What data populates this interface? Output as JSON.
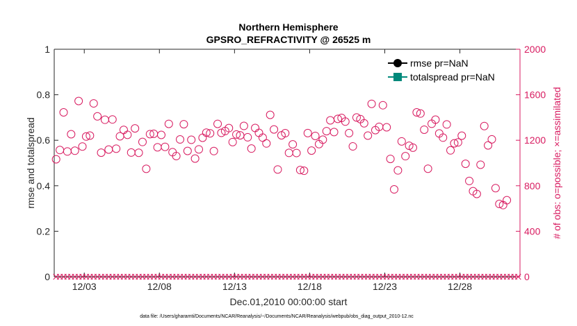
{
  "colors": {
    "axis_left": "#262626",
    "axis_right": "#d81b60",
    "obs_marker": "#d81b60",
    "rmse": "#000000",
    "totalspread": "#00897b"
  },
  "chart_data": {
    "type": "scatter",
    "title_line1": "Northern Hemisphere",
    "title_line2": "GPSRO_REFRACTIVITY @ 26525 m",
    "xlabel": "Dec.01,2010 00:00:00 start",
    "ylabel_left": "rmse and totalspread",
    "ylabel_right": "# of obs: o=possible; ×=assimilated",
    "footnote": "data file: /Users/gharamti/Documents/NCAR/Reanalysis/~/Documents/NCAR/Reanalysis/webpub/obs_diag_output_2010-12.nc",
    "x_unit": "days since Dec.01,2010 00:00:00",
    "xlim": [
      0,
      31
    ],
    "x_ticks": [
      2,
      7,
      12,
      17,
      22,
      27
    ],
    "x_tick_labels": [
      "12/03",
      "12/08",
      "12/13",
      "12/18",
      "12/23",
      "12/28"
    ],
    "ylim_left": [
      0,
      1
    ],
    "y_ticks_left": [
      0,
      0.2,
      0.4,
      0.6,
      0.8,
      1
    ],
    "y_tick_labels_left": [
      "0",
      "0.2",
      "0.4",
      "0.6",
      "0.8",
      "1"
    ],
    "ylim_right": [
      0,
      2000
    ],
    "y_ticks_right": [
      0,
      400,
      800,
      1200,
      1600,
      2000
    ],
    "y_tick_labels_right": [
      "0",
      "400",
      "800",
      "1200",
      "1600",
      "2000"
    ],
    "legend": [
      {
        "name": "rmse pr=NaN",
        "color": "#000000",
        "marker": "circle"
      },
      {
        "name": "totalspread pr=NaN",
        "color": "#00897b",
        "marker": "square"
      }
    ],
    "legend_location": "top-right",
    "series": [
      {
        "name": "obs possible",
        "axis": "right",
        "marker": "open-circle",
        "x_start": 0.125,
        "x_step": 0.25,
        "values": [
          1033,
          1114,
          1445,
          1101,
          1253,
          1108,
          1545,
          1145,
          1233,
          1241,
          1524,
          1410,
          1091,
          1380,
          1118,
          1383,
          1126,
          1235,
          1291,
          1248,
          1092,
          1304,
          1090,
          1185,
          949,
          1254,
          1257,
          1138,
          1247,
          1142,
          1344,
          1095,
          1061,
          1207,
          1341,
          1106,
          1204,
          1039,
          1120,
          1222,
          1267,
          1261,
          1105,
          1344,
          1265,
          1281,
          1307,
          1184,
          1251,
          1243,
          1326,
          1226,
          1127,
          1308,
          1265,
          1223,
          1172,
          1423,
          1295,
          943,
          1243,
          1262,
          1089,
          1164,
          1088,
          938,
          932,
          1263,
          1109,
          1238,
          1166,
          1205,
          1280,
          1375,
          1272,
          1388,
          1396,
          1364,
          1263,
          1146,
          1400,
          1386,
          1349,
          1241,
          1520,
          1289,
          1318,
          1508,
          1314,
          1036,
          768,
          935,
          1190,
          1060,
          1152,
          1135,
          1445,
          1435,
          1293,
          950,
          1345,
          1381,
          1260,
          1223,
          1339,
          1111,
          1173,
          1181,
          1240,
          993,
          842,
          752,
          728,
          985,
          1325,
          1155,
          1208,
          779,
          640,
          630,
          673
        ],
        "assimilated": [
          0,
          0,
          0,
          0,
          0,
          0,
          0,
          0,
          0,
          0,
          0,
          0,
          0,
          0,
          0,
          0,
          0,
          0,
          0,
          0,
          0,
          0,
          0,
          0,
          0,
          0,
          0,
          0,
          0,
          0,
          0,
          0,
          0,
          0,
          0,
          0,
          0,
          0,
          0,
          0,
          0,
          0,
          0,
          0,
          0,
          0,
          0,
          0,
          0,
          0,
          0,
          0,
          0,
          0,
          0,
          0,
          0,
          0,
          0,
          0,
          0,
          0,
          0,
          0,
          0,
          0,
          0,
          0,
          0,
          0,
          0,
          0,
          0,
          0,
          0,
          0,
          0,
          0,
          0,
          0,
          0,
          0,
          0,
          0,
          0,
          0,
          0,
          0,
          0,
          0,
          0,
          0,
          0,
          0,
          0,
          0,
          0,
          0,
          0,
          0,
          0,
          0,
          0,
          0,
          0,
          0,
          0,
          0,
          0,
          0,
          0,
          0,
          0,
          0,
          0,
          0,
          0,
          0,
          0,
          0,
          0,
          0,
          0,
          0
        ]
      }
    ]
  }
}
